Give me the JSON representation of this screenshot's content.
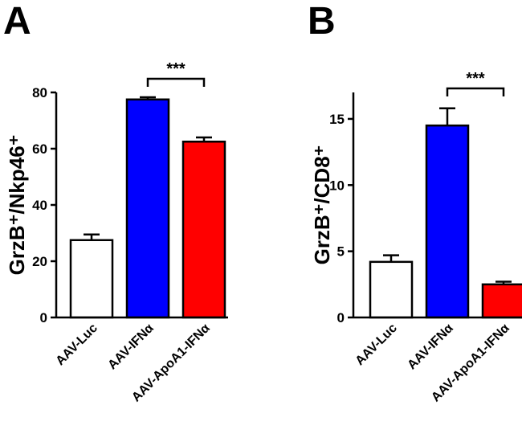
{
  "chart_data": [
    {
      "panel": "A",
      "type": "bar",
      "ylabel": "GrzB⁺/Nkp46⁺",
      "ylim": [
        0,
        80
      ],
      "yticks": [
        0,
        20,
        40,
        60,
        80
      ],
      "categories": [
        "AAV-Luc",
        "AAV-IFNα",
        "AAV-ApoA1-IFNα"
      ],
      "values": [
        27.5,
        77.5,
        62.5
      ],
      "errors": [
        2.0,
        0.8,
        1.5
      ],
      "colors": [
        "#ffffff",
        "#0000ff",
        "#ff0000"
      ],
      "significance": {
        "from": 1,
        "to": 2,
        "label": "***"
      }
    },
    {
      "panel": "B",
      "type": "bar",
      "ylabel": "GrzB⁺/CD8⁺",
      "ylim": [
        0,
        17
      ],
      "yticks": [
        0,
        5,
        10,
        15
      ],
      "categories": [
        "AAV-Luc",
        "AAV-IFNα",
        "AAV-ApoA1-IFNα"
      ],
      "values": [
        4.2,
        14.5,
        2.5
      ],
      "errors": [
        0.5,
        1.3,
        0.2
      ],
      "colors": [
        "#ffffff",
        "#0000ff",
        "#ff0000"
      ],
      "significance": {
        "from": 1,
        "to": 2,
        "label": "***"
      }
    }
  ]
}
